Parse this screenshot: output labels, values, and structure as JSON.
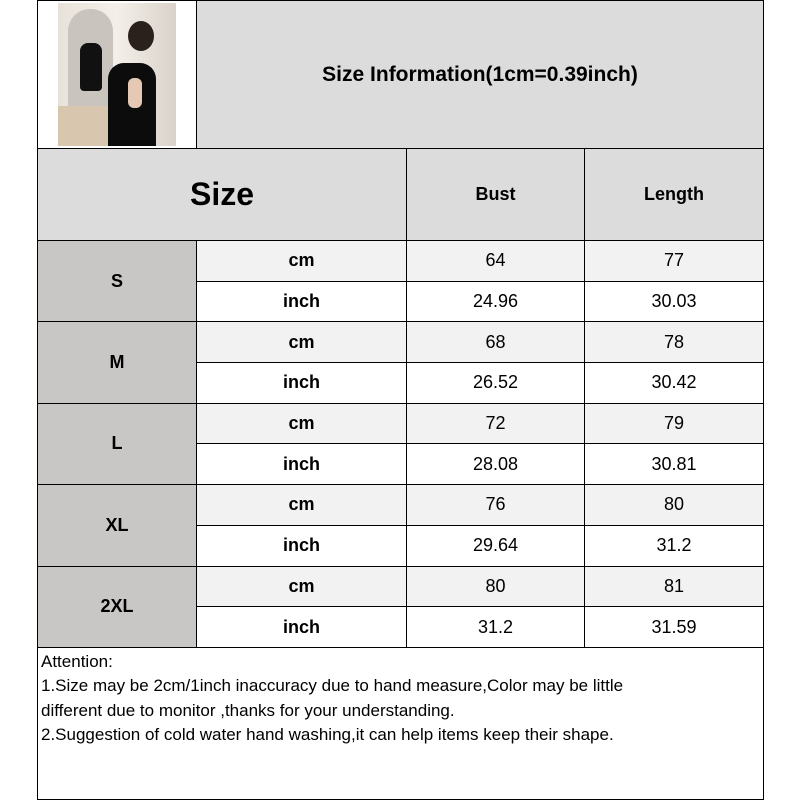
{
  "title": "Size Information(1cm=0.39inch)",
  "header": {
    "size": "Size",
    "bust": "Bust",
    "length": "Length"
  },
  "units": {
    "cm": "cm",
    "inch": "inch"
  },
  "sizes": [
    {
      "label": "S",
      "cm": {
        "bust": "64",
        "length": "77"
      },
      "inch": {
        "bust": "24.96",
        "length": "30.03"
      }
    },
    {
      "label": "M",
      "cm": {
        "bust": "68",
        "length": "78"
      },
      "inch": {
        "bust": "26.52",
        "length": "30.42"
      }
    },
    {
      "label": "L",
      "cm": {
        "bust": "72",
        "length": "79"
      },
      "inch": {
        "bust": "28.08",
        "length": "30.81"
      }
    },
    {
      "label": "XL",
      "cm": {
        "bust": "76",
        "length": "80"
      },
      "inch": {
        "bust": "29.64",
        "length": "31.2"
      }
    },
    {
      "label": "2XL",
      "cm": {
        "bust": "80",
        "length": "81"
      },
      "inch": {
        "bust": "31.2",
        "length": "31.59"
      }
    }
  ],
  "attention": {
    "heading": "Attention:",
    "line1a": "1.Size may be 2cm/1inch inaccuracy due to hand measure,Color may be little",
    "line1b": "different due to monitor ,thanks for your understanding.",
    "line2": "2.Suggestion of cold water hand washing,it can help items keep their shape."
  }
}
